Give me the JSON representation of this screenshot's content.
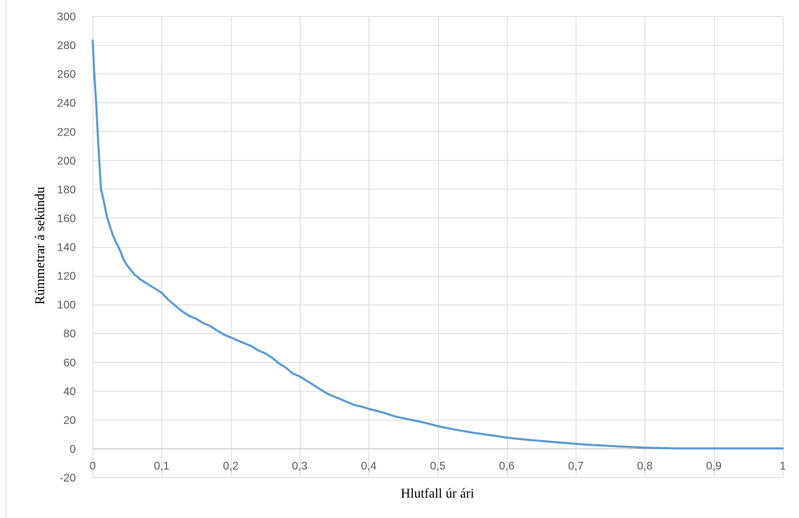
{
  "chart_data": {
    "type": "line",
    "title": "",
    "xlabel": "Hlutfall úr ári",
    "ylabel": "Rúmmetrar á sekúndu",
    "xlim": [
      0,
      1
    ],
    "ylim": [
      -20,
      300
    ],
    "xticks": [
      0,
      0.1,
      0.2,
      0.3,
      0.4,
      0.5,
      0.6,
      0.7,
      0.8,
      0.9,
      1
    ],
    "xtick_labels": [
      "0",
      "0,1",
      "0,2",
      "0,3",
      "0,4",
      "0,5",
      "0,6",
      "0,7",
      "0,8",
      "0,9",
      "1"
    ],
    "yticks": [
      -20,
      0,
      20,
      40,
      60,
      80,
      100,
      120,
      140,
      160,
      180,
      200,
      220,
      240,
      260,
      280,
      300
    ],
    "ytick_labels": [
      "-20",
      "0",
      "20",
      "40",
      "60",
      "80",
      "100",
      "120",
      "140",
      "160",
      "180",
      "200",
      "220",
      "240",
      "260",
      "280",
      "300"
    ],
    "grid": true,
    "legend": "none",
    "series": [
      {
        "color": "#5b9bd5",
        "points": [
          [
            0.0,
            283
          ],
          [
            0.002,
            262
          ],
          [
            0.005,
            240
          ],
          [
            0.008,
            212
          ],
          [
            0.012,
            180
          ],
          [
            0.016,
            172
          ],
          [
            0.02,
            162
          ],
          [
            0.025,
            154
          ],
          [
            0.03,
            147
          ],
          [
            0.035,
            142
          ],
          [
            0.04,
            137
          ],
          [
            0.045,
            131
          ],
          [
            0.05,
            127
          ],
          [
            0.06,
            121
          ],
          [
            0.07,
            117
          ],
          [
            0.08,
            114
          ],
          [
            0.09,
            111
          ],
          [
            0.1,
            108
          ],
          [
            0.11,
            103
          ],
          [
            0.12,
            99
          ],
          [
            0.13,
            95
          ],
          [
            0.14,
            92
          ],
          [
            0.15,
            90
          ],
          [
            0.16,
            87
          ],
          [
            0.17,
            85
          ],
          [
            0.18,
            82
          ],
          [
            0.19,
            79
          ],
          [
            0.2,
            77
          ],
          [
            0.21,
            75
          ],
          [
            0.22,
            73
          ],
          [
            0.23,
            71
          ],
          [
            0.24,
            68
          ],
          [
            0.25,
            66
          ],
          [
            0.26,
            63
          ],
          [
            0.27,
            59
          ],
          [
            0.28,
            56
          ],
          [
            0.29,
            52
          ],
          [
            0.3,
            50
          ],
          [
            0.31,
            47
          ],
          [
            0.32,
            44
          ],
          [
            0.33,
            41
          ],
          [
            0.34,
            38
          ],
          [
            0.35,
            36
          ],
          [
            0.36,
            34
          ],
          [
            0.37,
            32
          ],
          [
            0.38,
            30
          ],
          [
            0.39,
            29
          ],
          [
            0.4,
            27.5
          ],
          [
            0.42,
            25
          ],
          [
            0.44,
            22
          ],
          [
            0.46,
            20
          ],
          [
            0.48,
            18
          ],
          [
            0.5,
            15.5
          ],
          [
            0.52,
            13.5
          ],
          [
            0.55,
            11
          ],
          [
            0.58,
            9
          ],
          [
            0.6,
            7.5
          ],
          [
            0.63,
            6
          ],
          [
            0.65,
            5.2
          ],
          [
            0.68,
            4
          ],
          [
            0.7,
            3.2
          ],
          [
            0.72,
            2.5
          ],
          [
            0.75,
            1.7
          ],
          [
            0.78,
            1
          ],
          [
            0.8,
            0.6
          ],
          [
            0.82,
            0.3
          ],
          [
            0.84,
            0.1
          ],
          [
            0.85,
            0
          ],
          [
            0.9,
            0
          ],
          [
            0.95,
            0
          ],
          [
            1.0,
            0
          ]
        ]
      }
    ]
  }
}
